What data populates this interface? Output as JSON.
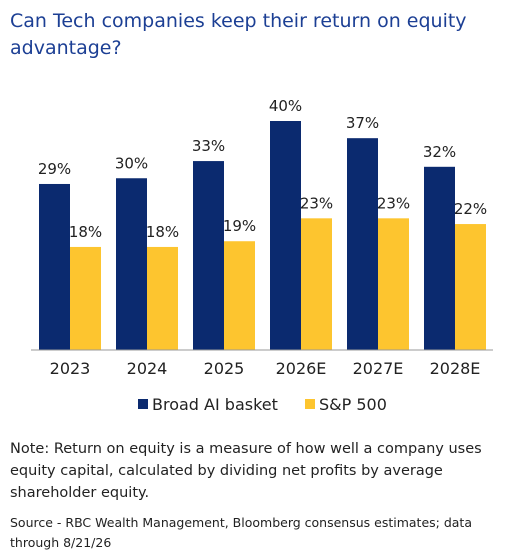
{
  "chart_data": {
    "type": "bar",
    "title": "Can Tech companies keep their return on equity advantage?",
    "categories": [
      "2023",
      "2024",
      "2025",
      "2026E",
      "2027E",
      "2028E"
    ],
    "series": [
      {
        "name": "Broad AI basket",
        "color": "#0b2a6f",
        "values": [
          29,
          30,
          33,
          40,
          37,
          32
        ],
        "value_labels": [
          "29%",
          "30%",
          "33%",
          "40%",
          "37%",
          "32%"
        ]
      },
      {
        "name": "S&P 500",
        "color": "#fdc52f",
        "values": [
          18,
          18,
          19,
          23,
          23,
          22
        ],
        "value_labels": [
          "18%",
          "18%",
          "19%",
          "23%",
          "23%",
          "22%"
        ]
      }
    ],
    "note": "Note: Return on equity is a measure of how well a company uses equity capital, calculated by dividing net profits by average shareholder equity.",
    "source": "Source - RBC Wealth Management, Bloomberg consensus estimates; data through 8/21/26"
  }
}
